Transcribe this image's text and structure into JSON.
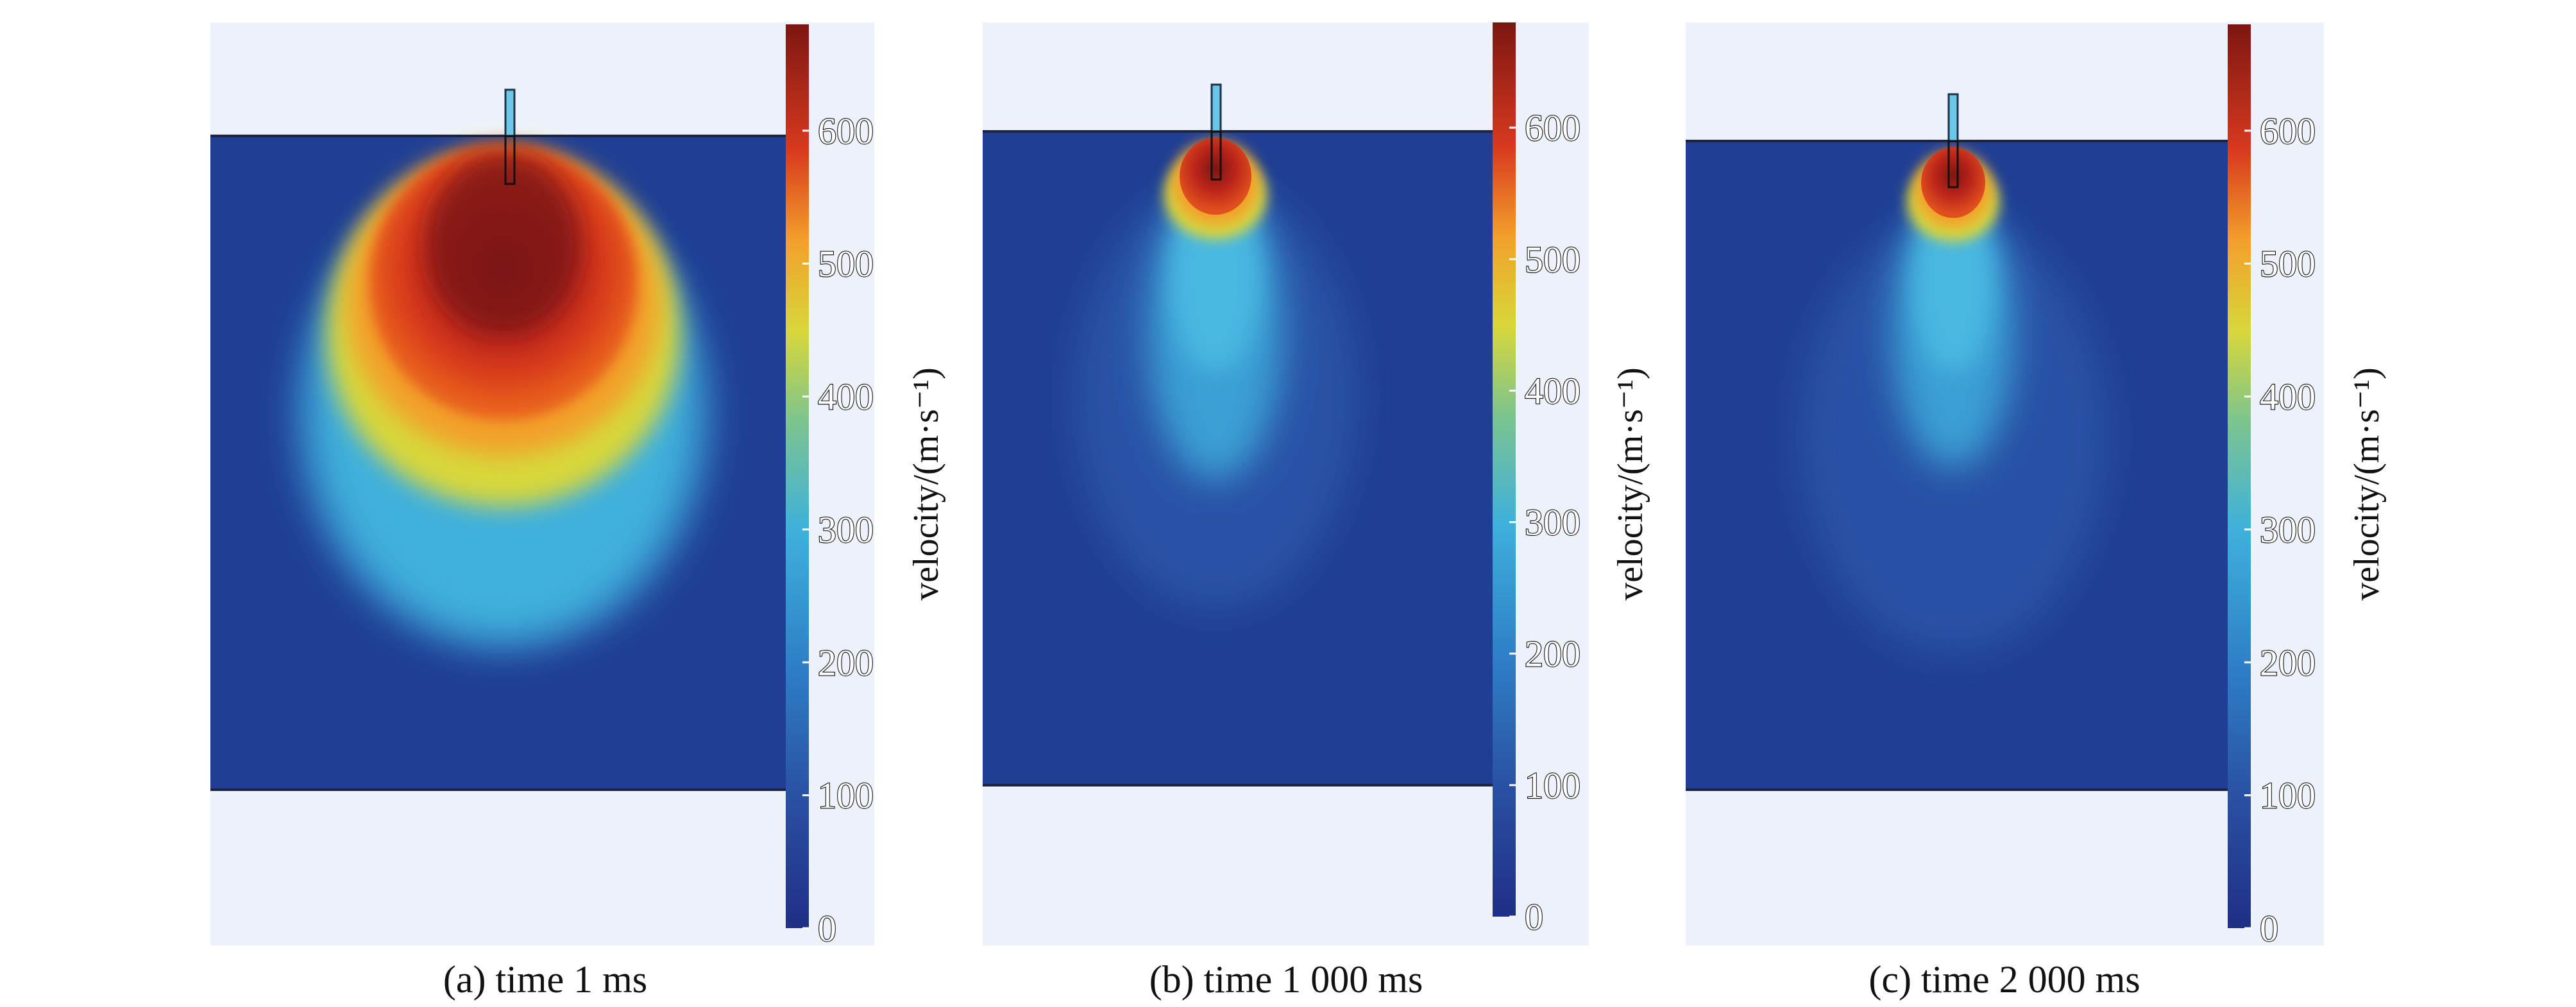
{
  "colors": {
    "background": "#e9eff8",
    "domain": "#203f94",
    "colormap": [
      "#1f2f86",
      "#2a5cae",
      "#3fb0dc",
      "#6cc39f",
      "#d7d73a",
      "#f2a02b",
      "#d83a1f",
      "#7c1612"
    ],
    "needle": "#6ac7e8",
    "text": "#111111"
  },
  "chart_data": [
    {
      "type": "heatmap",
      "title": "(a) time 1 ms",
      "colorbar_label": "velocity/(m·s⁻¹)",
      "colorbar_ticks": [
        "0",
        "100",
        "200",
        "300",
        "400",
        "500",
        "600"
      ],
      "colorbar_range": [
        0,
        680
      ],
      "plume": {
        "peak_velocity": 680,
        "core_extent": "large",
        "spread": "wide"
      }
    },
    {
      "type": "heatmap",
      "title": "(b) time 1 000 ms",
      "colorbar_label": "velocity/(m·s⁻¹)",
      "colorbar_ticks": [
        "0",
        "100",
        "200",
        "300",
        "400",
        "500",
        "600"
      ],
      "colorbar_range": [
        0,
        680
      ],
      "plume": {
        "peak_velocity": 680,
        "core_extent": "small",
        "spread": "narrow"
      }
    },
    {
      "type": "heatmap",
      "title": "(c) time 2 000 ms",
      "colorbar_label": "velocity/(m·s⁻¹)",
      "colorbar_ticks": [
        "0",
        "100",
        "200",
        "300",
        "400",
        "500",
        "600"
      ],
      "colorbar_range": [
        0,
        680
      ],
      "plume": {
        "peak_velocity": 680,
        "core_extent": "small",
        "spread": "narrow"
      }
    }
  ]
}
